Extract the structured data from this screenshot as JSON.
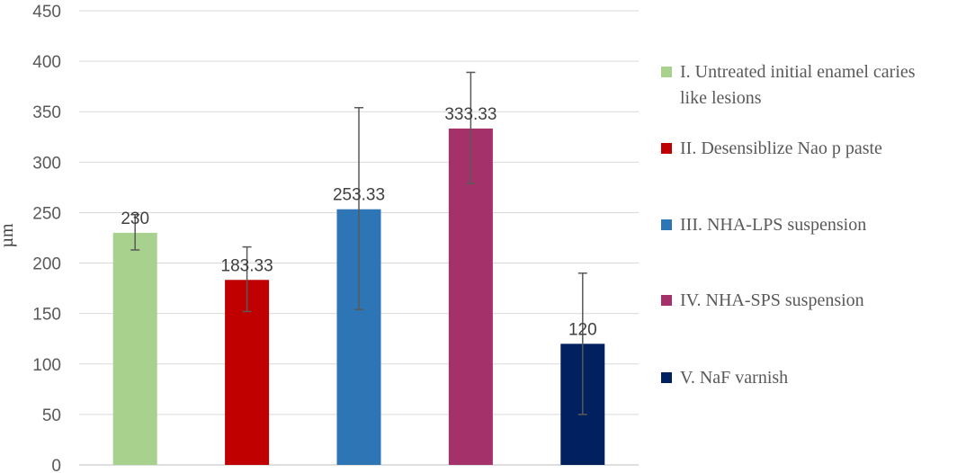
{
  "chart_data": {
    "type": "bar",
    "title": "",
    "xlabel": "",
    "ylabel": "µm",
    "ylim": [
      0,
      450
    ],
    "yticks": [
      0,
      50,
      100,
      150,
      200,
      250,
      300,
      350,
      400,
      450
    ],
    "grid": true,
    "legend_position": "right",
    "categories": [
      "I. Untreated  initial enamel caries like lesions",
      "II. Desensiblize Nao p paste",
      "III. NHA-LPS suspension",
      "IV. NHA-SPS suspension",
      "V. NaF varnish"
    ],
    "legend_lines": [
      [
        "I. Untreated  initial enamel caries",
        "like lesions"
      ],
      [
        "II. Desensiblize Nao p paste"
      ],
      [
        "III. NHA-LPS suspension"
      ],
      [
        "IV. NHA-SPS suspension"
      ],
      [
        "V. NaF varnish"
      ]
    ],
    "values": [
      230,
      183.33,
      253.33,
      333.33,
      120
    ],
    "value_labels": [
      "230",
      "183.33",
      "253.33",
      "333.33",
      "120"
    ],
    "error_low": [
      213,
      152,
      154,
      279,
      50
    ],
    "error_high": [
      248,
      216,
      354,
      389,
      190
    ],
    "colors": [
      "#a9d18e",
      "#c00000",
      "#2e75b6",
      "#a5316b",
      "#002060"
    ]
  }
}
